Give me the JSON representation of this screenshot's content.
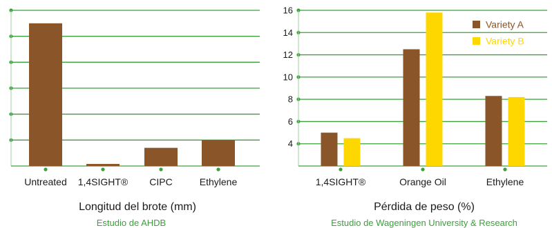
{
  "chart_data": [
    {
      "type": "bar",
      "title": "Longitud del brote (mm)",
      "subtitle": "Estudio de AHDB",
      "categories": [
        "Untreated",
        "1,4SIGHT®",
        "CIPC",
        "Ethylene"
      ],
      "values": [
        5.5,
        0.08,
        0.7,
        1.0
      ],
      "ylim": [
        0,
        6
      ],
      "ytick_labels_shown": false,
      "grid": true,
      "colors": {
        "bar": "#8a5528",
        "grid": "#3aa13a",
        "axis": "#3aa13a",
        "text": "#1a1a1a"
      }
    },
    {
      "type": "bar",
      "title": "Pérdida de peso (%)",
      "subtitle": "Estudio de Wageningen University & Research",
      "categories": [
        "1,4SIGHT®",
        "Orange Oil",
        "Ethylene"
      ],
      "series": [
        {
          "name": "Variety A",
          "values": [
            5.0,
            12.5,
            8.3
          ],
          "color": "#8a5528"
        },
        {
          "name": "Variety B",
          "values": [
            4.5,
            15.8,
            8.2
          ],
          "color": "#ffd700"
        }
      ],
      "ylim": [
        2,
        16
      ],
      "yticks": [
        4,
        6,
        8,
        10,
        12,
        14,
        16
      ],
      "grid": true,
      "legend_position": "top-right",
      "colors": {
        "grid": "#3aa13a",
        "axis": "#3aa13a",
        "text": "#1a1a1a"
      }
    }
  ]
}
